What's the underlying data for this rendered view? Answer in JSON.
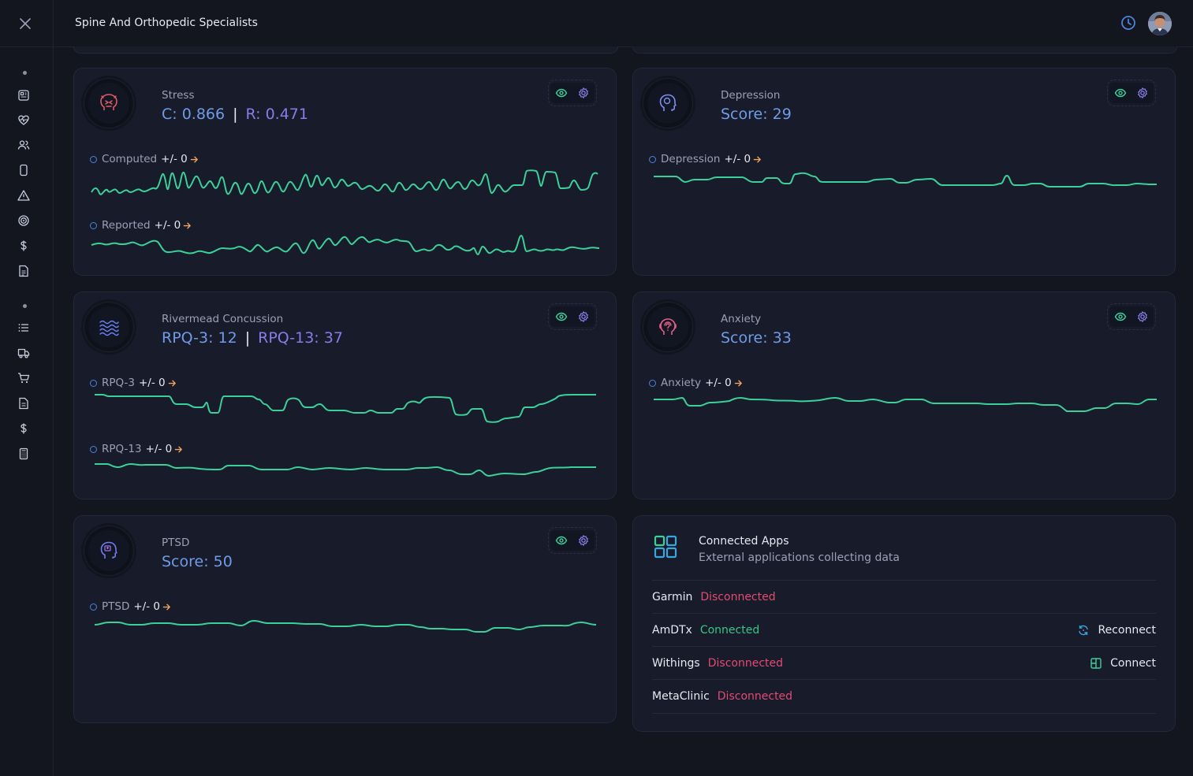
{
  "app": {
    "title": "Spine And Orthopedic Specialists"
  },
  "colors": {
    "background": "#13151f",
    "card": "#181b2a",
    "line": "#3ccf9a",
    "blue": "#6f9be8",
    "purple": "#8a7ce8",
    "disconnected": "#e24b74",
    "connected": "#3ac48a",
    "arrow": "#f0a35e"
  },
  "sidebar": {
    "close_icon": "close-icon",
    "group1": [
      "dashboard-icon",
      "heart-pulse-icon",
      "users-icon",
      "phone-icon",
      "alert-triangle-icon",
      "target-icon",
      "dollar-icon",
      "report-icon"
    ],
    "group2": [
      "list-icon",
      "truck-icon",
      "cart-icon",
      "document-icon",
      "dollar-icon",
      "calculator-icon"
    ]
  },
  "cards": {
    "stress": {
      "label": "Stress",
      "score_c": "C: 0.866",
      "separator": "|",
      "score_r": "R: 0.471",
      "series": [
        {
          "name": "Computed",
          "delta": "+/- 0"
        },
        {
          "name": "Reported",
          "delta": "+/- 0"
        }
      ]
    },
    "depression": {
      "label": "Depression",
      "score": "Score: 29",
      "series": [
        {
          "name": "Depression",
          "delta": "+/- 0"
        }
      ]
    },
    "rivermead": {
      "label": "Rivermead Concussion",
      "score_a": "RPQ-3: 12",
      "separator": "|",
      "score_b": "RPQ-13: 37",
      "series": [
        {
          "name": "RPQ-3",
          "delta": "+/- 0"
        },
        {
          "name": "RPQ-13",
          "delta": "+/- 0"
        }
      ]
    },
    "anxiety": {
      "label": "Anxiety",
      "score": "Score: 33",
      "series": [
        {
          "name": "Anxiety",
          "delta": "+/- 0"
        }
      ]
    },
    "ptsd": {
      "label": "PTSD",
      "score": "Score: 50",
      "series": [
        {
          "name": "PTSD",
          "delta": "+/- 0"
        }
      ]
    }
  },
  "connected_apps": {
    "title": "Connected Apps",
    "subtitle": "External applications collecting data",
    "apps": [
      {
        "name": "Garmin",
        "status": "Disconnected",
        "action": ""
      },
      {
        "name": "AmDTx",
        "status": "Connected",
        "action": "Reconnect"
      },
      {
        "name": "Withings",
        "status": "Disconnected",
        "action": "Connect"
      },
      {
        "name": "MetaClinic",
        "status": "Disconnected",
        "action": ""
      }
    ]
  }
}
